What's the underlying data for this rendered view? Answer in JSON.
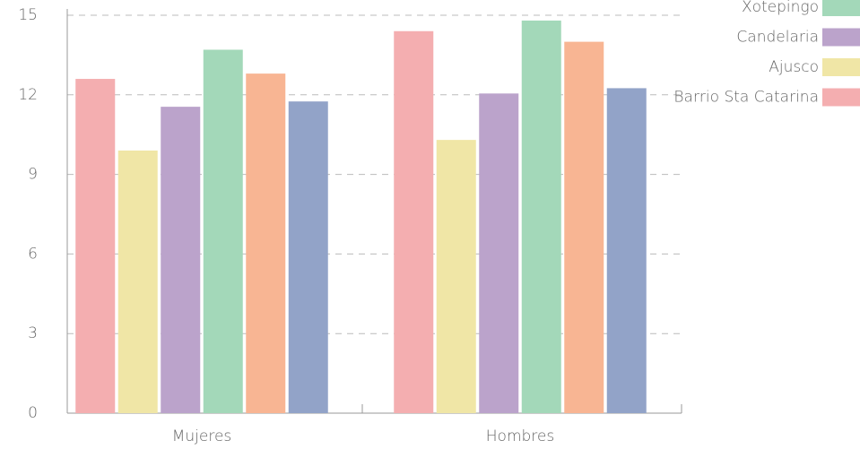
{
  "chart_data": {
    "type": "bar",
    "categories": [
      "Mujeres",
      "Hombres"
    ],
    "series": [
      {
        "name": "Barrio Sta Catarina",
        "color": "#f4aeb0",
        "values": [
          12.6,
          14.4
        ]
      },
      {
        "name": "Ajusco",
        "color": "#f0e6a6",
        "values": [
          9.9,
          10.3
        ]
      },
      {
        "name": "Candelaria",
        "color": "#bba3cb",
        "values": [
          11.55,
          12.05
        ]
      },
      {
        "name": "Xotepingo",
        "color": "#a3d8b9",
        "values": [
          13.7,
          14.8
        ]
      },
      {
        "name": null,
        "color": "#f8b593",
        "values": [
          12.8,
          14.0
        ]
      },
      {
        "name": null,
        "color": "#92a3c8",
        "values": [
          11.75,
          12.25
        ]
      }
    ],
    "ylim": [
      0,
      15
    ],
    "yticks": [
      0,
      3,
      6,
      9,
      12,
      15
    ],
    "grid": true
  }
}
